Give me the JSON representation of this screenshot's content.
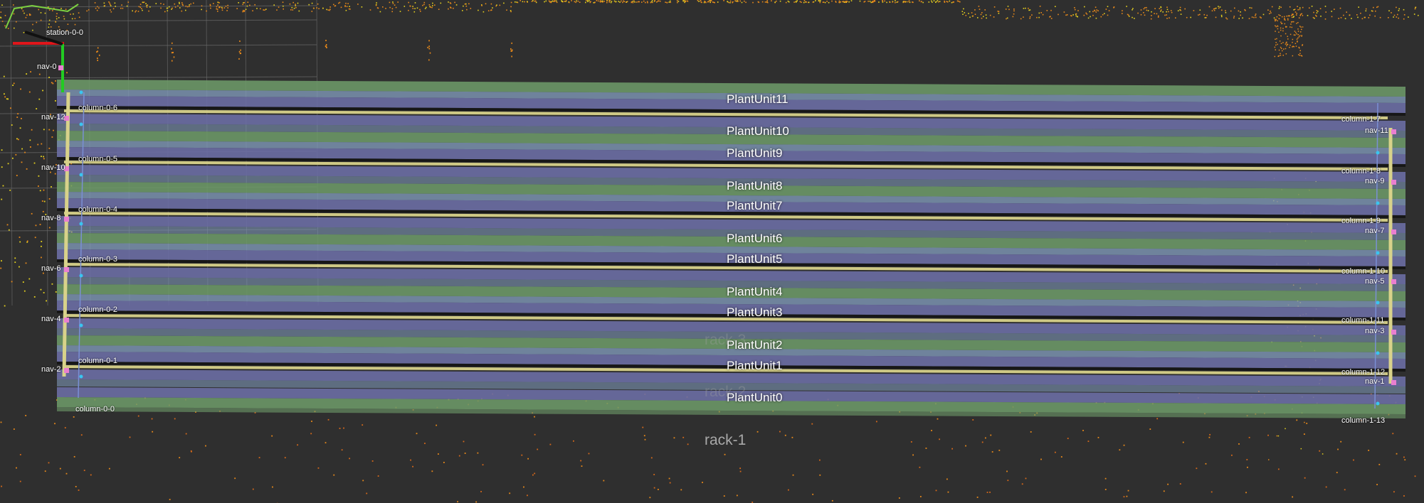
{
  "plant_units": [
    "PlantUnit11",
    "PlantUnit10",
    "PlantUnit9",
    "PlantUnit8",
    "PlantUnit7",
    "PlantUnit6",
    "PlantUnit5",
    "PlantUnit4",
    "PlantUnit3",
    "PlantUnit2",
    "PlantUnit1",
    "PlantUnit0"
  ],
  "racks": [
    "rack-3",
    "rack-2",
    "rack-1"
  ],
  "station": "station-0-0",
  "nav_left": [
    "nav-0",
    "nav-12",
    "nav-10",
    "nav-8",
    "nav-6",
    "nav-4",
    "nav-2"
  ],
  "nav_right": [
    "nav-11",
    "nav-9",
    "nav-7",
    "nav-5",
    "nav-3",
    "nav-1"
  ],
  "columns_left": [
    "column-0-6",
    "column-0-5",
    "column-0-4",
    "column-0-3",
    "column-0-2",
    "column-0-1",
    "column-0-0"
  ],
  "columns_right": [
    "column-1-7",
    "column-1-8",
    "column-1-9",
    "column-1-10",
    "column-1-11",
    "column-1-12",
    "column-1-13"
  ],
  "colors": {
    "background": "#2f2f2f",
    "grid": "#6b6b6b",
    "row_blue": "#6b6ea4",
    "row_lightblue": "#7f98b8",
    "row_green": "#6f9c6a",
    "rail_yellow": "#d8d28a",
    "nav_marker": "#e97fd0",
    "axis_red": "#e0161b",
    "axis_green": "#22cc22",
    "point_orange": "#e8891a",
    "point_yellow": "#e6d21e"
  }
}
